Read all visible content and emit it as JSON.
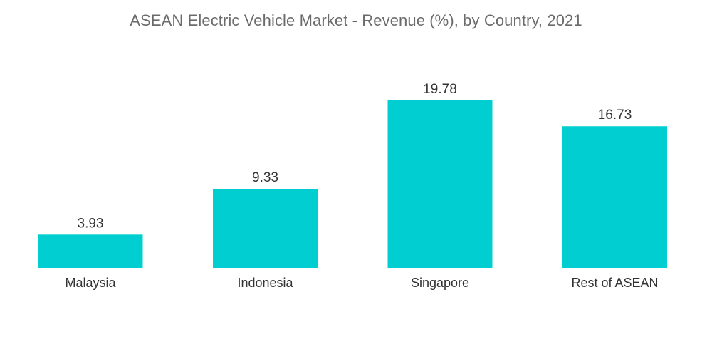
{
  "chart_data": {
    "type": "bar",
    "title": "ASEAN Electric Vehicle Market - Revenue (%), by Country, 2021",
    "categories": [
      "Malaysia",
      "Indonesia",
      "Singapore",
      "Rest of ASEAN"
    ],
    "values": [
      3.93,
      9.33,
      19.78,
      16.73
    ],
    "value_labels": [
      "3.93",
      "9.33",
      "19.78",
      "16.73"
    ],
    "xlabel": "",
    "ylabel": "",
    "ylim": [
      0,
      19.78
    ],
    "grid": false,
    "legend": "none",
    "colors": {
      "bar": "#00CED1"
    }
  }
}
